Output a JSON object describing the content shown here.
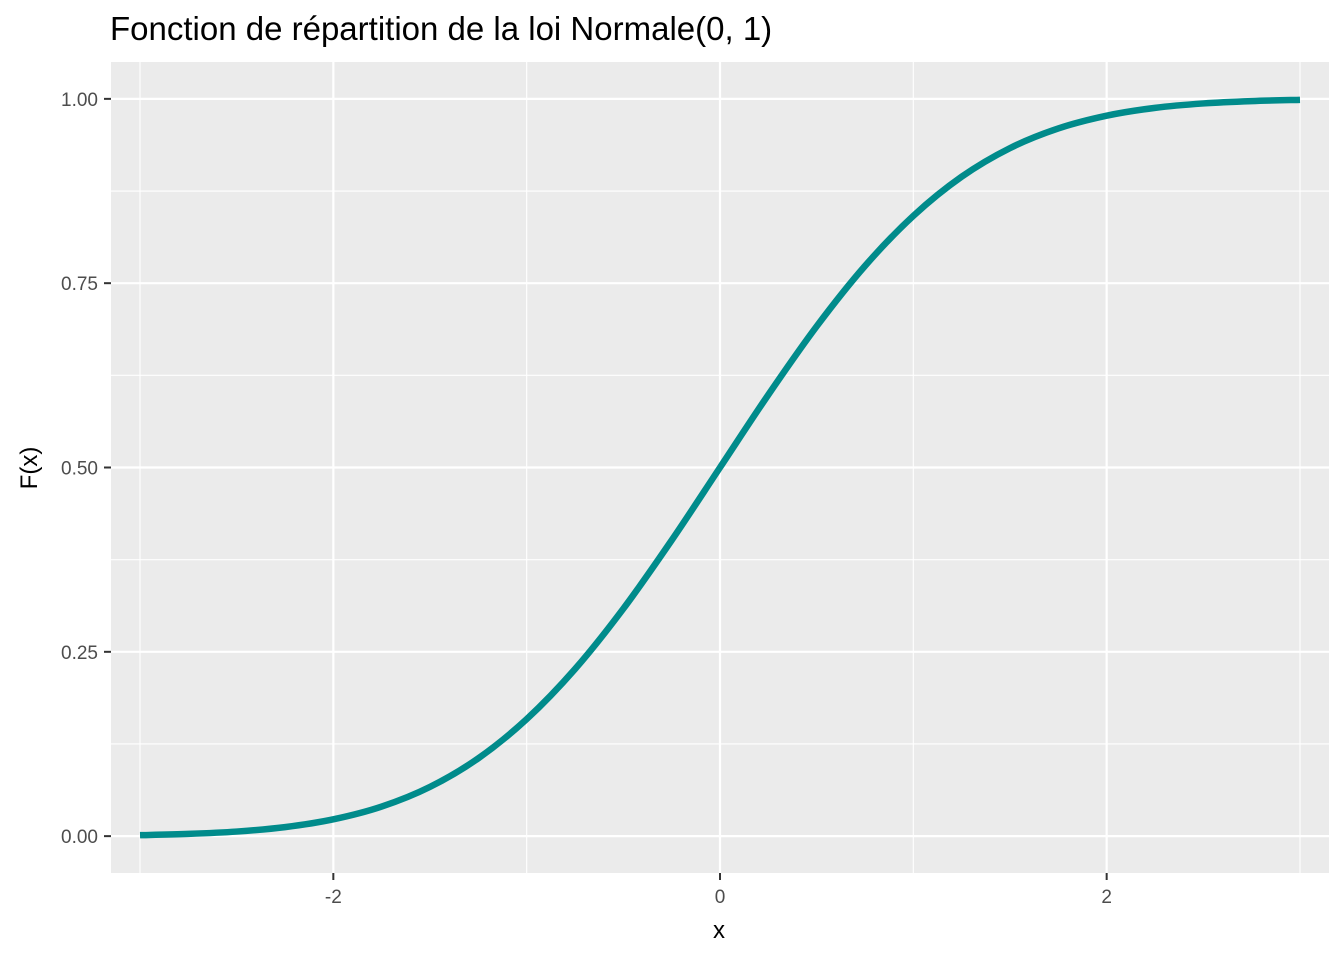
{
  "chart_data": {
    "type": "line",
    "title": "Fonction de répartition de la loi Normale(0, 1)",
    "xlabel": "x",
    "ylabel": "F(x)",
    "xlim": [
      -3.15,
      3.15
    ],
    "ylim": [
      -0.05,
      1.05
    ],
    "x_ticks": [
      -2,
      0,
      2
    ],
    "x_tick_labels": [
      "-2",
      "0",
      "2"
    ],
    "y_ticks": [
      0,
      0.25,
      0.5,
      0.75,
      1
    ],
    "y_tick_labels": [
      "0.00",
      "0.25",
      "0.50",
      "0.75",
      "1.00"
    ],
    "grid": true,
    "background_color": "#ebebeb",
    "grid_color": "#ffffff",
    "line_color": "#008b8b",
    "series": [
      {
        "x": [
          -3.0,
          -2.75,
          -2.5,
          -2.25,
          -2.0,
          -1.75,
          -1.5,
          -1.25,
          -1.0,
          -0.75,
          -0.5,
          -0.25,
          0.0,
          0.25,
          0.5,
          0.75,
          1.0,
          1.25,
          1.5,
          1.75,
          2.0,
          2.25,
          2.5,
          2.75,
          3.0
        ],
        "y": [
          0.0013,
          0.003,
          0.0062,
          0.0122,
          0.0228,
          0.0401,
          0.0668,
          0.1056,
          0.1587,
          0.2266,
          0.3085,
          0.4013,
          0.5,
          0.5987,
          0.6915,
          0.7734,
          0.8413,
          0.8944,
          0.9332,
          0.9599,
          0.9772,
          0.9878,
          0.9938,
          0.997,
          0.9987
        ]
      }
    ]
  }
}
